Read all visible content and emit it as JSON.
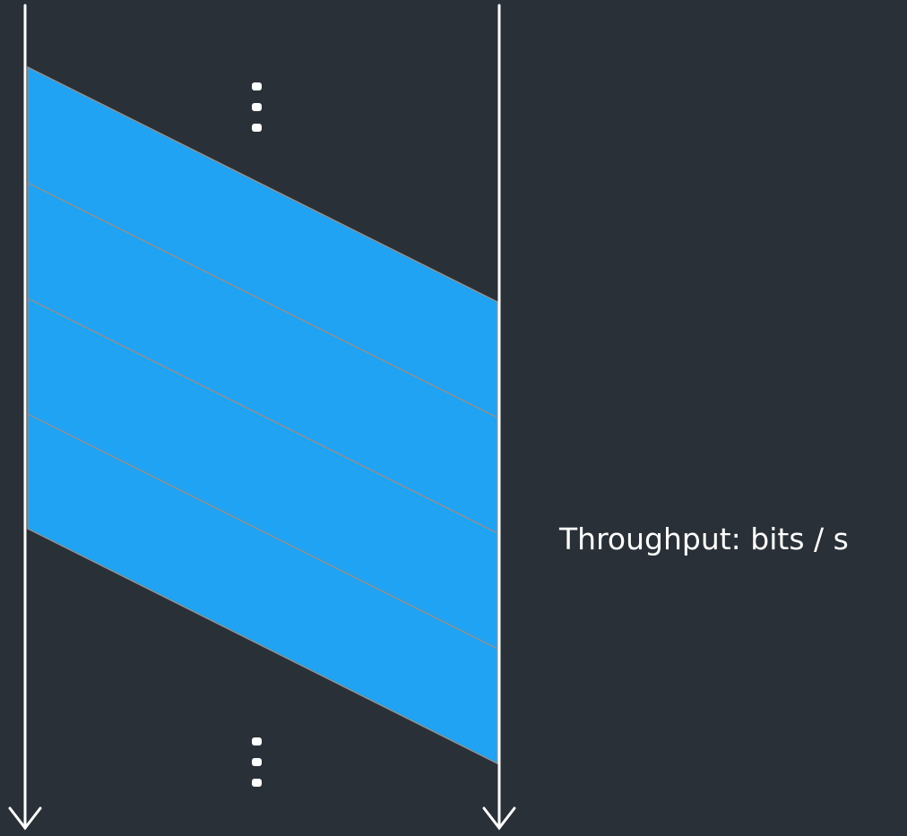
{
  "diagram": {
    "throughput_label": "Throughput: bits / s",
    "packet_count": 4,
    "colors": {
      "background": "#2a3037",
      "packet_fill": "#1fa3f2",
      "packet_divider": "#8a9199",
      "timeline": "#ffffff",
      "ellipsis": "#ffffff"
    },
    "icons": {
      "ellipsis_top": "vertical-ellipsis-icon",
      "ellipsis_bottom": "vertical-ellipsis-icon",
      "arrow_left": "arrow-down-icon",
      "arrow_right": "arrow-down-icon"
    }
  }
}
